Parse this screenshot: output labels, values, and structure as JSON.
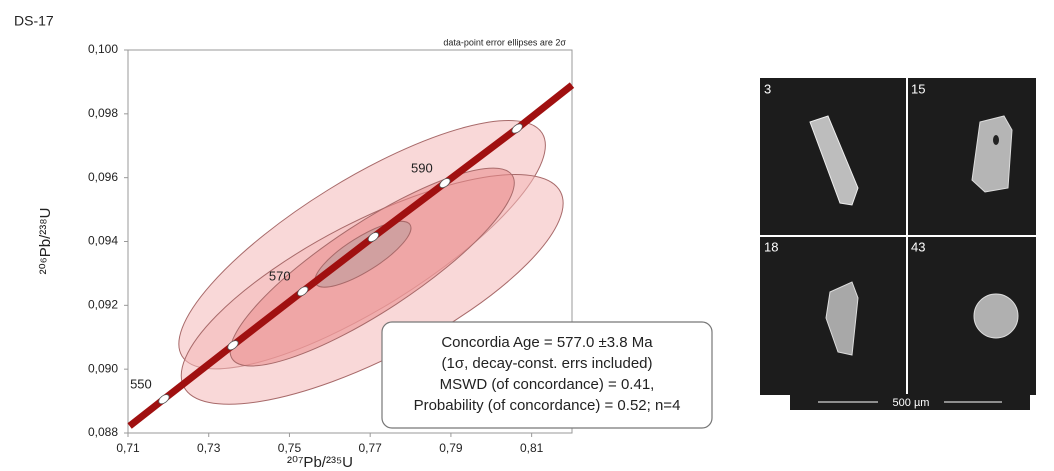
{
  "sample": "DS-17",
  "chart_data": {
    "type": "concordia",
    "annotation": "data-point error ellipses are 2σ",
    "x_label": "²⁰⁷Pb/²³⁵U",
    "y_label": "²⁰⁶Pb/²³⁸U",
    "xlim": [
      0.71,
      0.82
    ],
    "ylim": [
      0.088,
      0.1
    ],
    "xticks": [
      {
        "value": 0.71,
        "label": "0,71"
      },
      {
        "value": 0.73,
        "label": "0,73"
      },
      {
        "value": 0.75,
        "label": "0,75"
      },
      {
        "value": 0.77,
        "label": "0,77"
      },
      {
        "value": 0.79,
        "label": "0,79"
      },
      {
        "value": 0.81,
        "label": "0,81"
      }
    ],
    "yticks": [
      {
        "value": 0.088,
        "label": "0,088"
      },
      {
        "value": 0.09,
        "label": "0,090"
      },
      {
        "value": 0.092,
        "label": "0,092"
      },
      {
        "value": 0.094,
        "label": "0,094"
      },
      {
        "value": 0.096,
        "label": "0,096"
      },
      {
        "value": 0.098,
        "label": "0,098"
      },
      {
        "value": 0.1,
        "label": "0,100"
      }
    ],
    "ellipses": [
      {
        "x": 0.768,
        "y": 0.0939,
        "x_err": 0.0454,
        "y_err": 0.00389,
        "rho": 0.8,
        "color": "#f4b8b8"
      },
      {
        "x": 0.7705,
        "y": 0.0925,
        "x_err": 0.0473,
        "y_err": 0.0036,
        "rho": 0.75,
        "color": "#f4b8b8"
      },
      {
        "x": 0.7705,
        "y": 0.0932,
        "x_err": 0.0352,
        "y_err": 0.0031,
        "rho": 0.85,
        "color": "#e98c8c"
      },
      {
        "x": 0.7682,
        "y": 0.0936,
        "x_err": 0.0119,
        "y_err": 0.00103,
        "rho": 0.8,
        "color": "#b89a9a"
      }
    ],
    "concordia": {
      "color": "#a01010",
      "x": [
        0.7104,
        0.7189,
        0.736,
        0.7533,
        0.7708,
        0.7885,
        0.8064,
        0.82
      ],
      "y": [
        0.08822,
        0.08906,
        0.09075,
        0.09244,
        0.09414,
        0.09583,
        0.09754,
        0.0989
      ]
    },
    "age_markers": {
      "ages": [
        550,
        null,
        570,
        null,
        590,
        null
      ],
      "x": [
        0.7189,
        0.736,
        0.7533,
        0.7708,
        0.7885,
        0.8064
      ],
      "y": [
        0.08906,
        0.09075,
        0.09244,
        0.09414,
        0.09583,
        0.09754
      ]
    },
    "result_box": [
      "Concordia Age = 577.0 ±3.8 Ma",
      "(1σ, decay-const. errs included)",
      "MSWD (of concordance) = 0.41,",
      "Probability (of concordance) = 0.52; n=4"
    ]
  },
  "grain_images": {
    "panels": [
      "3",
      "15",
      "18",
      "43"
    ],
    "scale_bar": "500 µm"
  }
}
